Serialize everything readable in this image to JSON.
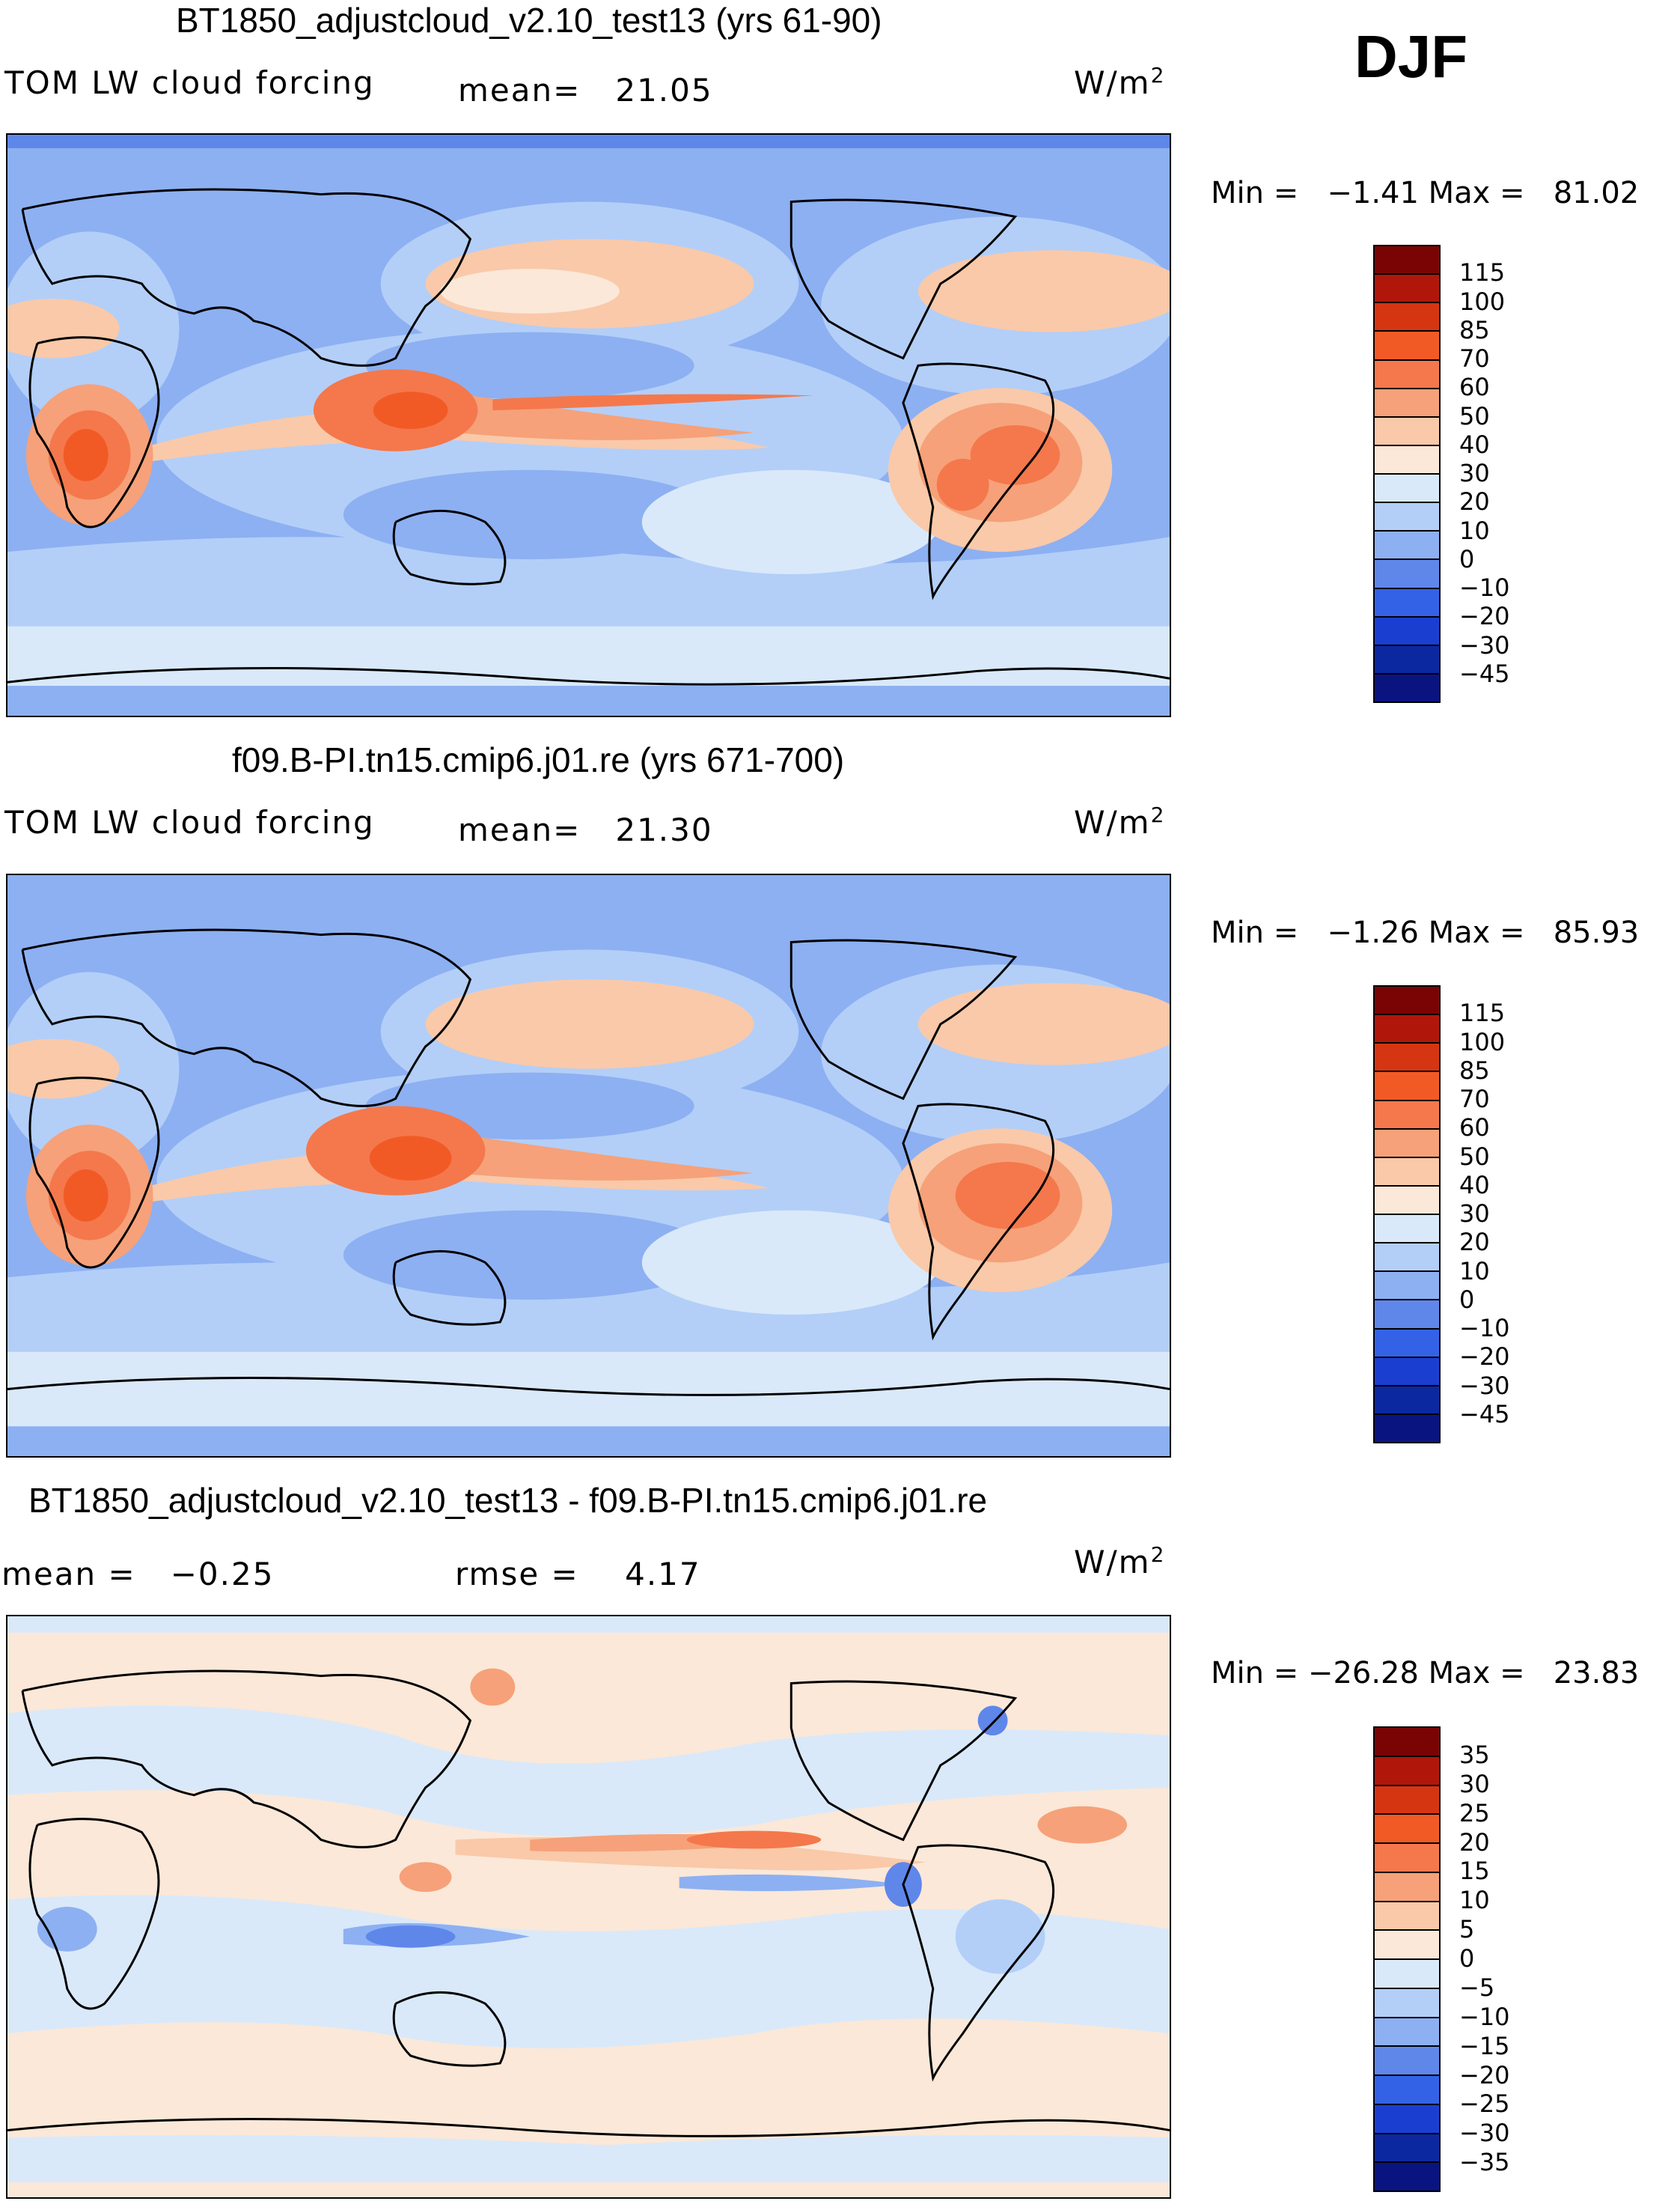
{
  "season": "DJF",
  "panels": [
    {
      "title": "BT1850_adjustcloud_v2.10_test13 (yrs 61-90)",
      "left_label": "TOM LW cloud forcing",
      "mid_label": "mean=   21.05",
      "units": "W/m",
      "units_sup": "2",
      "minmax": "Min =   −1.41 Max =   81.02"
    },
    {
      "title": "f09.B-PI.tn15.cmip6.j01.re (yrs 671-700)",
      "left_label": "TOM LW cloud forcing",
      "mid_label": "mean=   21.30",
      "units": "W/m",
      "units_sup": "2",
      "minmax": "Min =   −1.26 Max =   85.93"
    },
    {
      "title": "BT1850_adjustcloud_v2.10_test13 - f09.B-PI.tn15.cmip6.j01.re",
      "left_label": "mean =   −0.25",
      "mid_label": "rmse =    4.17",
      "units": "W/m",
      "units_sup": "2",
      "minmax": "Min = −26.28 Max =   23.83"
    }
  ],
  "colorbar_main": {
    "labels": [
      "115",
      "100",
      "85",
      "70",
      "60",
      "50",
      "40",
      "30",
      "20",
      "10",
      "0",
      "−10",
      "−20",
      "−30",
      "−45"
    ],
    "colors": [
      "#7a0403",
      "#b0170a",
      "#d63512",
      "#f25a25",
      "#f4784c",
      "#f6a179",
      "#f9c9a9",
      "#fbe8d8",
      "#d9e9fa",
      "#b3cff8",
      "#8db0f2",
      "#5f87ea",
      "#3462e6",
      "#1a3fd0",
      "#0c28a0",
      "#0a1480"
    ]
  },
  "colorbar_diff": {
    "labels": [
      "35",
      "30",
      "25",
      "20",
      "15",
      "10",
      "5",
      "0",
      "−5",
      "−10",
      "−15",
      "−20",
      "−25",
      "−30",
      "−35"
    ],
    "colors": [
      "#7a0403",
      "#b0170a",
      "#d63512",
      "#f25a25",
      "#f4784c",
      "#f6a179",
      "#f9c9a9",
      "#fbe8d8",
      "#d9e9fa",
      "#b3cff8",
      "#8db0f2",
      "#5f87ea",
      "#3462e6",
      "#1a3fd0",
      "#0c28a0",
      "#0a1480"
    ]
  }
}
